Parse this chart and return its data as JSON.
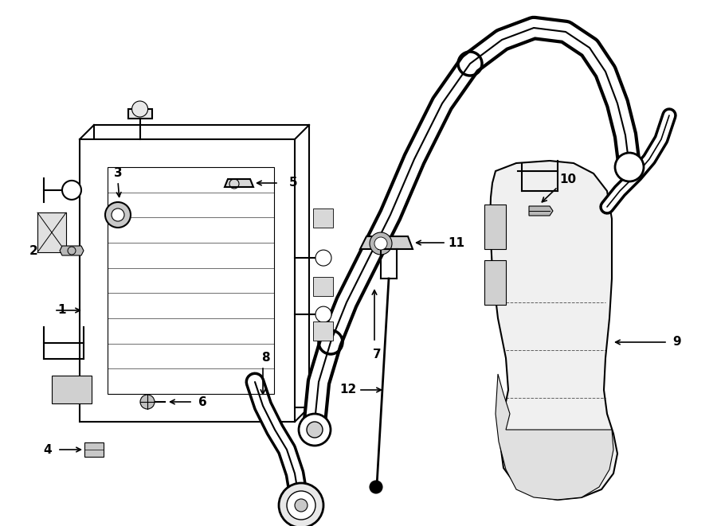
{
  "bg_color": "#ffffff",
  "line_color": "#000000",
  "fig_width": 9.0,
  "fig_height": 6.61,
  "dpi": 100,
  "lw_main": 1.5,
  "lw_thick": 2.0,
  "lw_thin": 0.8
}
